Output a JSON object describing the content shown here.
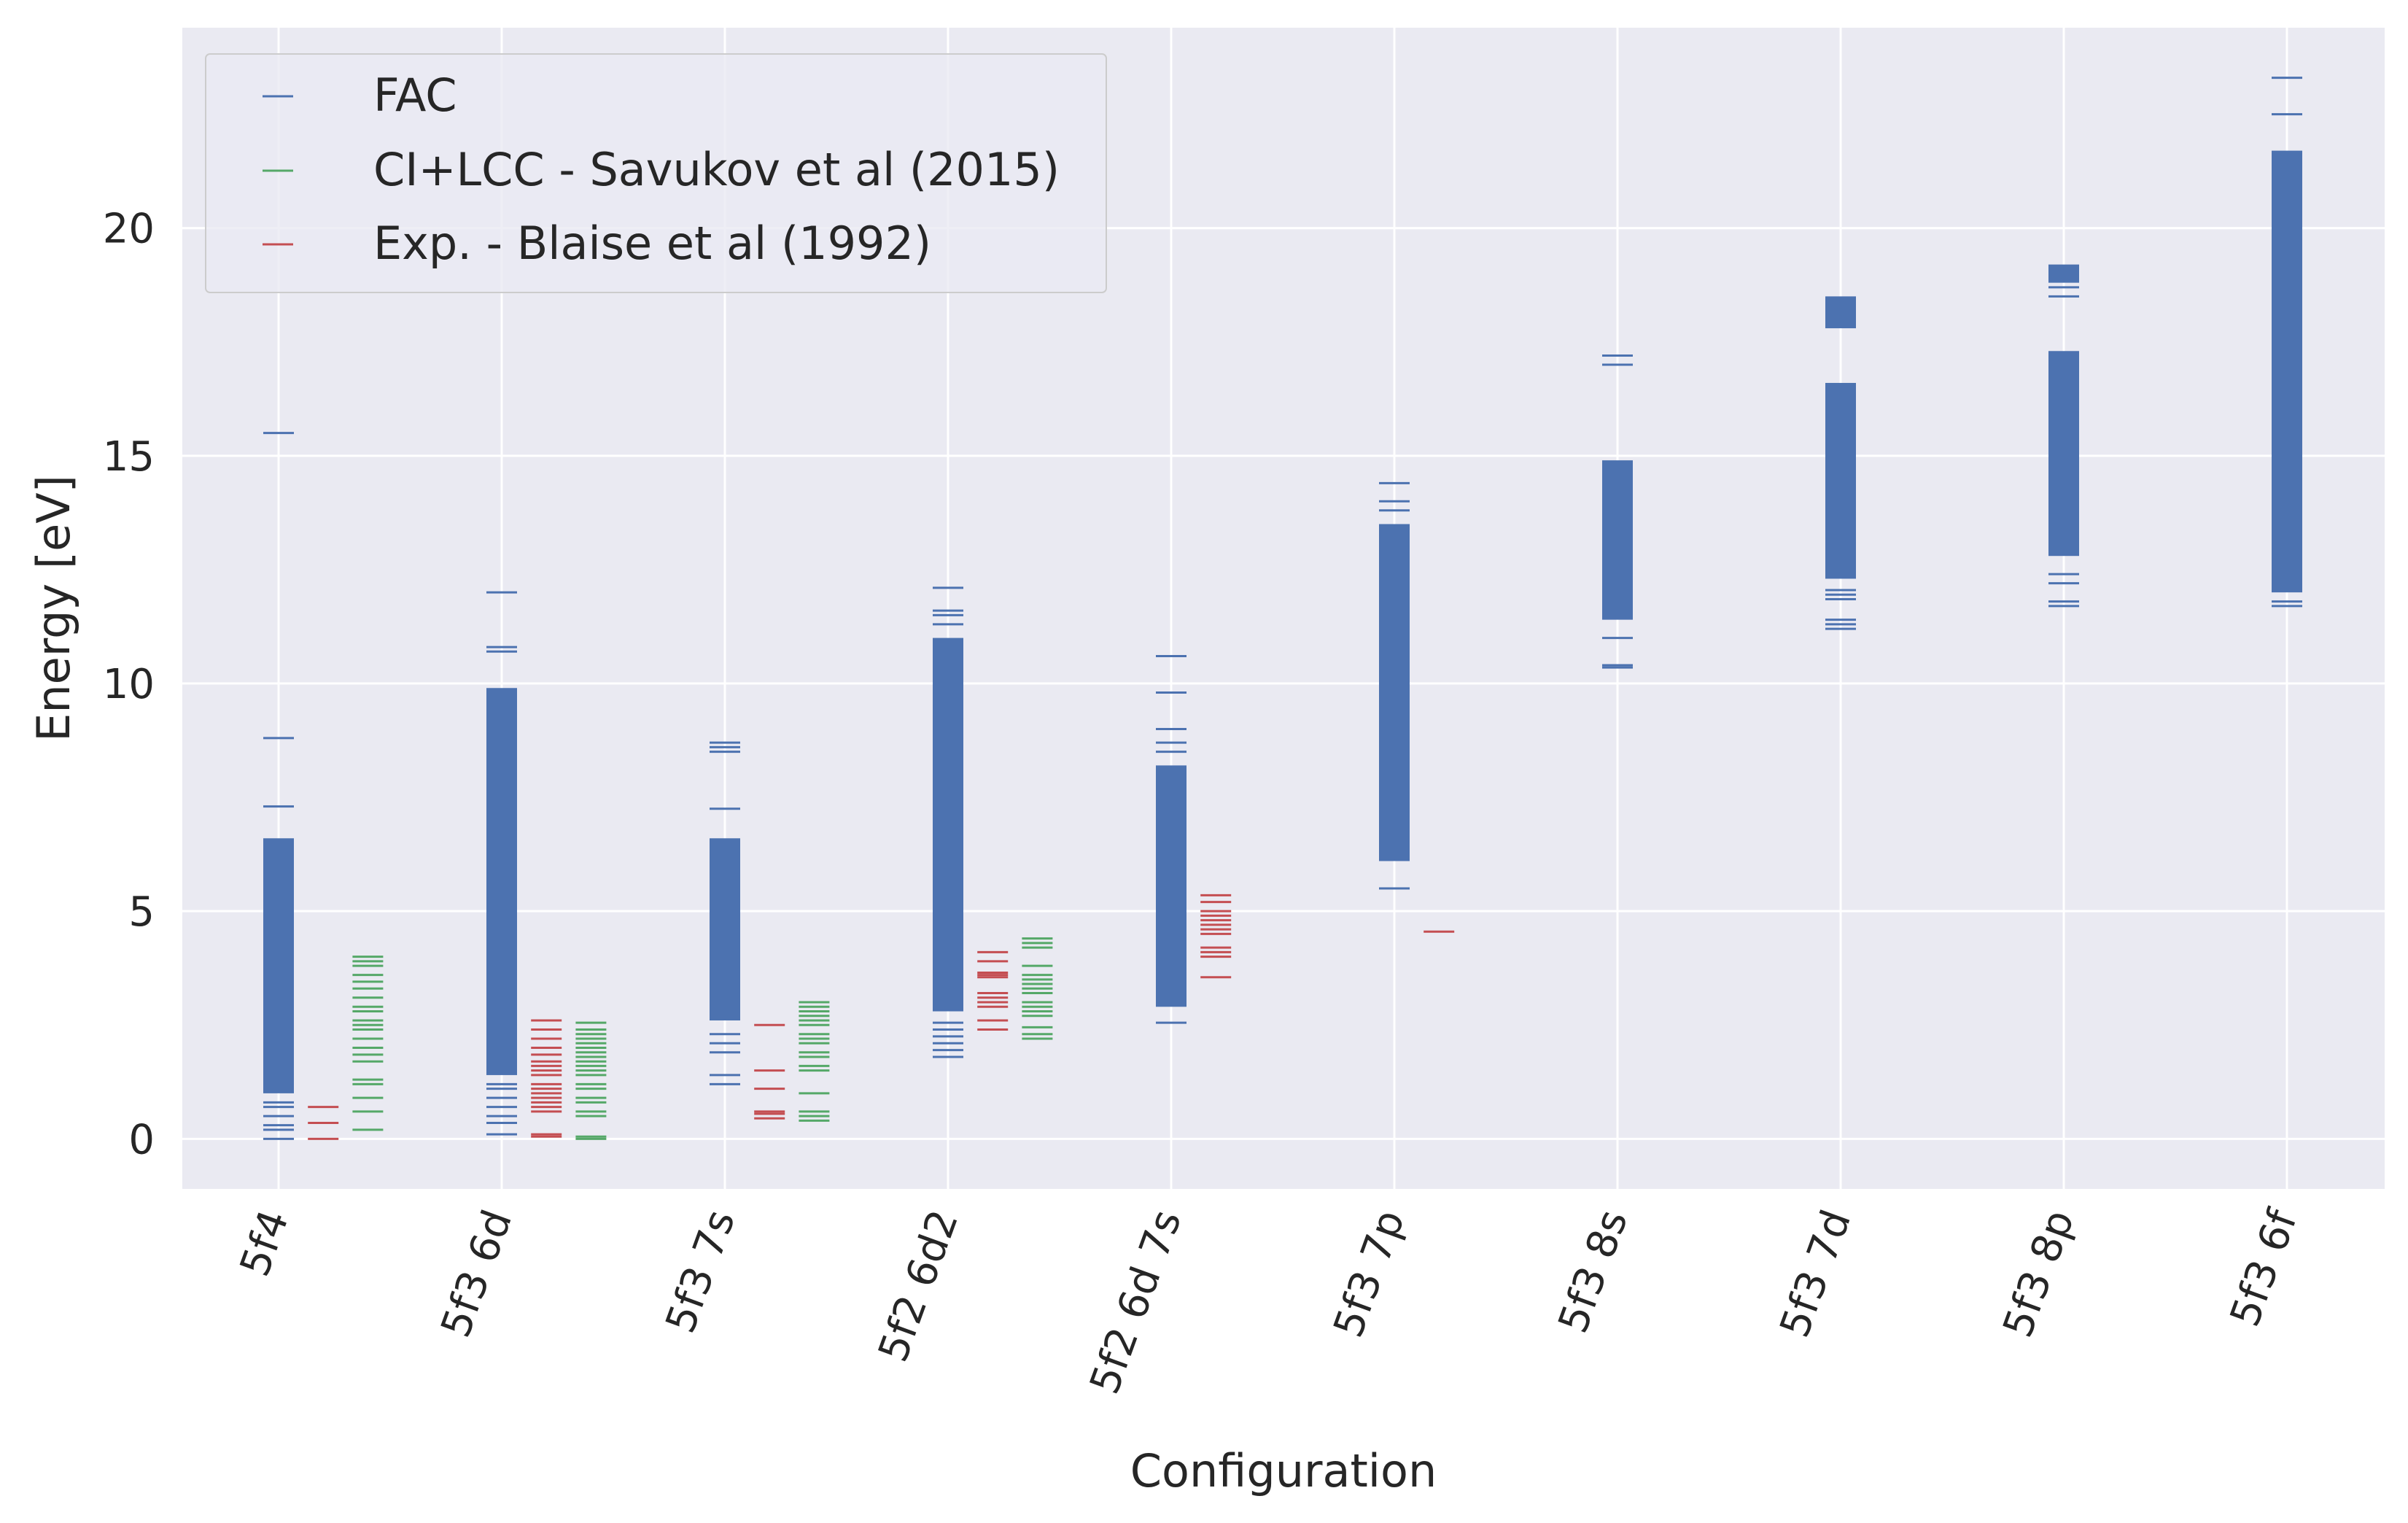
{
  "chart_data": {
    "type": "scatter",
    "marker": "hline",
    "title": "",
    "xlabel": "Configuration",
    "ylabel": "Energy [eV]",
    "ylim": [
      -1.1,
      24.4
    ],
    "yticks": [
      0,
      5,
      10,
      15,
      20
    ],
    "grid": true,
    "legend_position": "top-left",
    "colors": {
      "FAC": "#4c72b0",
      "CI+LCC - Savukov et al (2015)": "#55a868",
      "Exp. - Blaise et al (1992)": "#c44e52"
    },
    "categories": [
      "5f4",
      "5f3 6d",
      "5f3 7s",
      "5f2 6d2",
      "5f2 6d 7s",
      "5f3 7p",
      "5f3 8s",
      "5f3 7d",
      "5f3 8p",
      "5f3 6f"
    ],
    "series": [
      {
        "name": "FAC",
        "color": "#4c72b0",
        "offset": 0,
        "groups": [
          {
            "category": "5f4",
            "levels": [
              0,
              0.2,
              0.3,
              0.5,
              0.7,
              0.8,
              1.1,
              8.8,
              7.3,
              15.5
            ],
            "bands": [
              [
                1.0,
                6.6
              ]
            ]
          },
          {
            "category": "5f3 6d",
            "levels": [
              0.1,
              0.35,
              0.5,
              0.7,
              0.9,
              1.1,
              1.2,
              10.7,
              10.8,
              12.0
            ],
            "bands": [
              [
                1.4,
                9.9
              ]
            ]
          },
          {
            "category": "5f3 7s",
            "levels": [
              1.2,
              1.4,
              1.9,
              2.1,
              2.3,
              7.25,
              8.5,
              8.6,
              8.7
            ],
            "bands": [
              [
                2.6,
                6.6
              ]
            ]
          },
          {
            "category": "5f2 6d2",
            "levels": [
              1.8,
              1.95,
              2.1,
              2.25,
              2.4,
              2.55,
              11.3,
              11.5,
              11.6,
              12.1
            ],
            "bands": [
              [
                2.8,
                11.0
              ]
            ]
          },
          {
            "category": "5f2 6d 7s",
            "levels": [
              2.55,
              8.5,
              8.7,
              9.0,
              9.8,
              10.6
            ],
            "bands": [
              [
                2.9,
                8.2
              ]
            ]
          },
          {
            "category": "5f3 7p",
            "levels": [
              5.5,
              13.8,
              14.0,
              14.4
            ],
            "bands": [
              [
                6.1,
                13.5
              ]
            ]
          },
          {
            "category": "5f3 8s",
            "levels": [
              10.35,
              10.4,
              11.0,
              17.0,
              17.2
            ],
            "bands": [
              [
                11.4,
                14.9
              ]
            ]
          },
          {
            "category": "5f3 7d",
            "levels": [
              11.2,
              11.3,
              11.4,
              11.85,
              11.95,
              12.05
            ],
            "bands": [
              [
                12.3,
                16.6
              ],
              [
                17.8,
                18.5
              ]
            ]
          },
          {
            "category": "5f3 8p",
            "levels": [
              11.7,
              11.8,
              12.2,
              12.4,
              18.5,
              18.7
            ],
            "bands": [
              [
                12.8,
                17.3
              ],
              [
                18.8,
                19.2
              ]
            ]
          },
          {
            "category": "5f3 6f",
            "levels": [
              11.7,
              11.8,
              22.5,
              23.3
            ],
            "bands": [
              [
                12.0,
                21.7
              ]
            ]
          }
        ]
      },
      {
        "name": "CI+LCC - Savukov et al (2015)",
        "color": "#55a868",
        "offset": 0.4,
        "groups": [
          {
            "category": "5f4",
            "levels": [
              0.2,
              0.6,
              0.9,
              1.2,
              1.3,
              1.7,
              1.85,
              2.0,
              2.2,
              2.4,
              2.5,
              2.6,
              2.8,
              2.9,
              3.1,
              3.3,
              3.45,
              3.6,
              3.8,
              3.9,
              4.0
            ],
            "bands": []
          },
          {
            "category": "5f3 6d",
            "levels": [
              0,
              0.05,
              0.5,
              0.6,
              0.8,
              0.9,
              1.1,
              1.2,
              1.4,
              1.5,
              1.6,
              1.7,
              1.8,
              1.9,
              2.0,
              2.1,
              2.2,
              2.3,
              2.4,
              2.55
            ],
            "bands": []
          },
          {
            "category": "5f3 7s",
            "levels": [
              0.4,
              0.5,
              0.6,
              1.0,
              1.5,
              1.6,
              1.8,
              1.9,
              2.1,
              2.2,
              2.3,
              2.5,
              2.6,
              2.7,
              2.8,
              2.9,
              3.0
            ],
            "bands": []
          },
          {
            "category": "5f2 6d2",
            "levels": [
              2.2,
              2.3,
              2.45,
              2.7,
              2.8,
              2.9,
              3.0,
              3.2,
              3.3,
              3.4,
              3.5,
              3.6,
              3.8,
              4.2,
              4.3,
              4.4
            ],
            "bands": []
          }
        ]
      },
      {
        "name": "Exp. - Blaise et al (1992)",
        "color": "#c44e52",
        "offset": 0.2,
        "groups": [
          {
            "category": "5f4",
            "levels": [
              0,
              0.35,
              0.7
            ],
            "bands": []
          },
          {
            "category": "5f3 6d",
            "levels": [
              0.05,
              0.1,
              0.6,
              0.7,
              0.8,
              0.9,
              1.0,
              1.1,
              1.2,
              1.4,
              1.5,
              1.6,
              1.7,
              1.85,
              2.0,
              2.2,
              2.4,
              2.6
            ],
            "bands": []
          },
          {
            "category": "5f3 7s",
            "levels": [
              0.45,
              0.55,
              0.6,
              1.1,
              1.5,
              2.5
            ],
            "bands": []
          },
          {
            "category": "5f2 6d2",
            "levels": [
              2.4,
              2.6,
              2.9,
              3.0,
              3.1,
              3.2,
              3.55,
              3.6,
              3.65,
              3.9,
              4.1
            ],
            "bands": []
          },
          {
            "category": "5f2 6d 7s",
            "levels": [
              3.55,
              4.0,
              4.1,
              4.2,
              4.5,
              4.6,
              4.7,
              4.8,
              4.9,
              5.0,
              5.2,
              5.35
            ],
            "bands": []
          },
          {
            "category": "5f3 7p",
            "levels": [
              4.55
            ],
            "bands": []
          }
        ]
      }
    ]
  }
}
